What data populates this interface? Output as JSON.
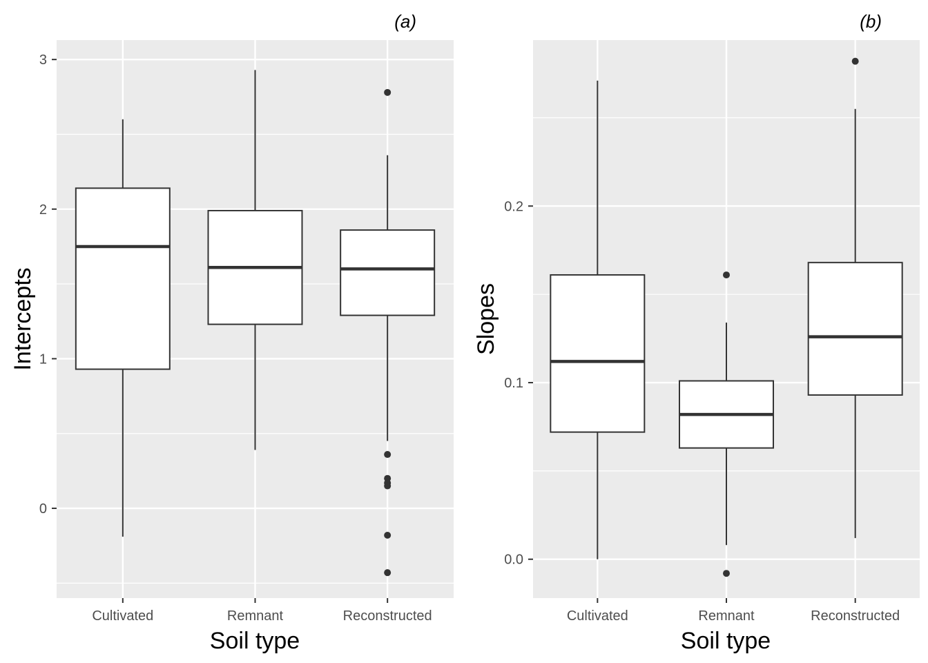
{
  "chart_data": [
    {
      "type": "box",
      "panel_label": "(a)",
      "xlabel": "Soil type",
      "ylabel": "Intercepts",
      "categories": [
        "Cultivated",
        "Remnant",
        "Reconstructed"
      ],
      "ylim": [
        -0.6,
        3.13
      ],
      "yticks": [
        0,
        1,
        2,
        3
      ],
      "ytick_labels": [
        "0",
        "1",
        "2",
        "3"
      ],
      "grid": true,
      "boxes": [
        {
          "category": "Cultivated",
          "whisker_low": -0.19,
          "q1": 0.93,
          "median": 1.75,
          "q3": 2.14,
          "whisker_high": 2.6,
          "outliers": []
        },
        {
          "category": "Remnant",
          "whisker_low": 0.39,
          "q1": 1.23,
          "median": 1.61,
          "q3": 1.99,
          "whisker_high": 2.93,
          "outliers": []
        },
        {
          "category": "Reconstructed",
          "whisker_low": 0.45,
          "q1": 1.29,
          "median": 1.6,
          "q3": 1.86,
          "whisker_high": 2.36,
          "outliers": [
            2.78,
            0.36,
            0.2,
            0.17,
            0.15,
            -0.18,
            -0.43
          ]
        }
      ]
    },
    {
      "type": "box",
      "panel_label": "(b)",
      "xlabel": "Soil type",
      "ylabel": "Slopes",
      "categories": [
        "Cultivated",
        "Remnant",
        "Reconstructed"
      ],
      "ylim": [
        -0.022,
        0.294
      ],
      "yticks": [
        0,
        0.1,
        0.2
      ],
      "ytick_labels": [
        "0.0",
        "0.1",
        "0.2"
      ],
      "grid": true,
      "boxes": [
        {
          "category": "Cultivated",
          "whisker_low": 0.0,
          "q1": 0.072,
          "median": 0.112,
          "q3": 0.161,
          "whisker_high": 0.271,
          "outliers": []
        },
        {
          "category": "Remnant",
          "whisker_low": 0.008,
          "q1": 0.063,
          "median": 0.082,
          "q3": 0.101,
          "whisker_high": 0.134,
          "outliers": [
            0.161,
            -0.008
          ]
        },
        {
          "category": "Reconstructed",
          "whisker_low": 0.012,
          "q1": 0.093,
          "median": 0.126,
          "q3": 0.168,
          "whisker_high": 0.255,
          "outliers": [
            0.282
          ]
        }
      ]
    }
  ]
}
